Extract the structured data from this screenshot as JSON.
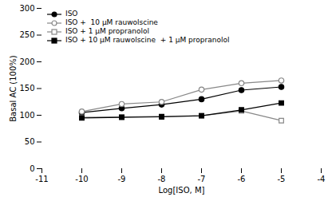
{
  "chart_data": {
    "type": "line",
    "xlabel": "Log[ISO, M]",
    "ylabel": "Basal AC (100%)",
    "x": [
      -10,
      -9,
      -8,
      -7,
      -6,
      -5
    ],
    "series": [
      {
        "name": "ISO",
        "color": "#000000",
        "marker": "circle",
        "values": [
          105,
          113,
          120,
          130,
          147,
          153
        ]
      },
      {
        "name": "ISO +  10 μM rauwolscine",
        "color": "#888888",
        "marker": "circle-open",
        "values": [
          107,
          121,
          125,
          148,
          160,
          165
        ]
      },
      {
        "name": "ISO + 1 μM propranolol",
        "color": "#888888",
        "marker": "square-open",
        "values": [
          96,
          97,
          98,
          99,
          108,
          90
        ]
      },
      {
        "name": "ISO + 10 μM rauwolscine  + 1 μM propranolol",
        "color": "#000000",
        "marker": "square",
        "values": [
          95,
          96,
          97,
          99,
          110,
          123
        ]
      }
    ],
    "xlim": [
      -11,
      -4
    ],
    "xticks": [
      -11,
      -10,
      -9,
      -8,
      -7,
      -6,
      -5,
      -4
    ],
    "ylim": [
      0,
      300
    ],
    "yticks": [
      0,
      50,
      100,
      150,
      200,
      250,
      300
    ],
    "grid": false,
    "legend": "upper left"
  }
}
